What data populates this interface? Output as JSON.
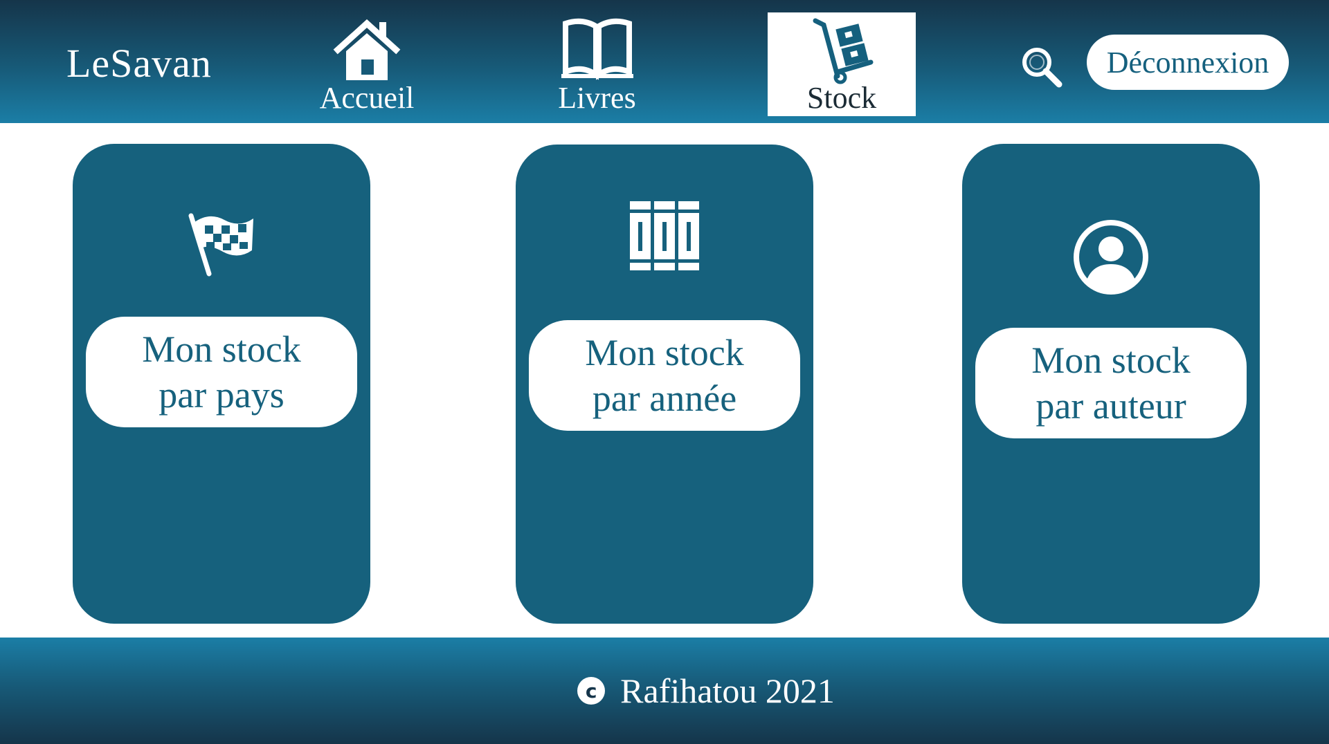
{
  "app": {
    "brand": "LeSavan"
  },
  "nav": {
    "items": [
      {
        "label": "Accueil",
        "icon": "home-icon"
      },
      {
        "label": "Livres",
        "icon": "open-book-icon"
      },
      {
        "label": "Stock",
        "icon": "hand-truck-icon",
        "active": true
      }
    ],
    "search_icon": "search-icon",
    "logout_label": "Déconnexion"
  },
  "cards": [
    {
      "icon": "flag-icon",
      "line1": "Mon stock",
      "line2": "par pays"
    },
    {
      "icon": "books-icon",
      "line1": "Mon stock",
      "line2": "par année"
    },
    {
      "icon": "user-icon",
      "line1": "Mon stock",
      "line2": "par auteur"
    }
  ],
  "footer": {
    "symbol": "c",
    "text": "Rafihatou 2021"
  },
  "colors": {
    "primary": "#16617d",
    "header_dark": "#15354a",
    "header_light": "#1b7ea6",
    "white": "#ffffff"
  }
}
